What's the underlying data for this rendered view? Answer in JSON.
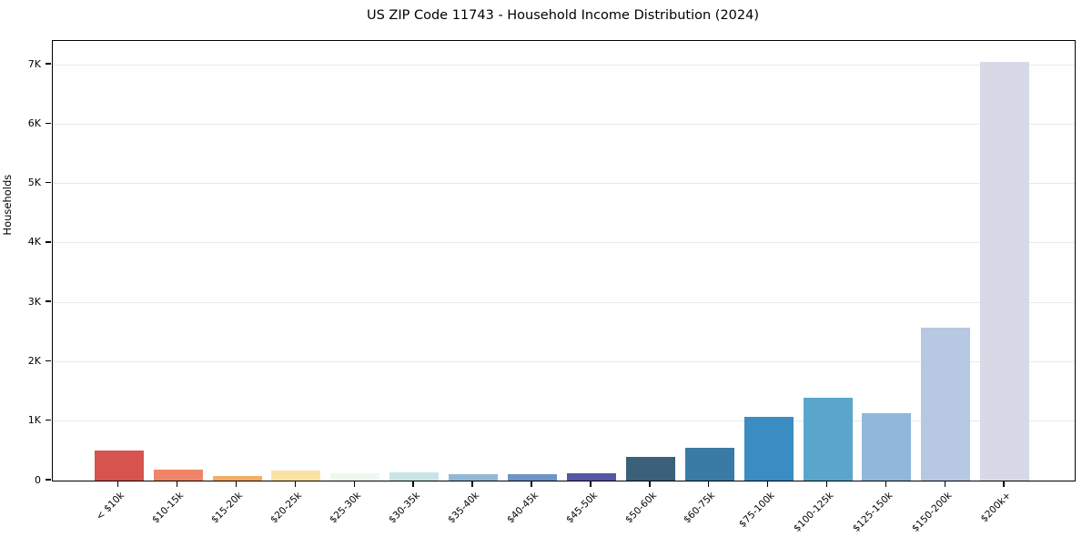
{
  "chart_data": {
    "type": "bar",
    "title": "US ZIP Code 11743 - Household Income Distribution (2024)",
    "xlabel": "",
    "ylabel": "Households",
    "categories": [
      "< $10k",
      "$10-15k",
      "$15-20k",
      "$20-25k",
      "$25-30k",
      "$30-35k",
      "$35-40k",
      "$40-45k",
      "$45-50k",
      "$50-60k",
      "$60-75k",
      "$75-100k",
      "$100-125k",
      "$125-150k",
      "$150-200k",
      "$200k+"
    ],
    "values": [
      500,
      180,
      80,
      165,
      120,
      140,
      115,
      100,
      125,
      400,
      550,
      1070,
      1390,
      1130,
      2580,
      7050
    ],
    "bar_colors": [
      "#d6534e",
      "#ef8566",
      "#f6ad62",
      "#fae3a2",
      "#eff8f0",
      "#c8e4e4",
      "#90b8d6",
      "#6e93c6",
      "#5655a6",
      "#3a607a",
      "#3a7ba6",
      "#3a8cc2",
      "#5aa5cb",
      "#8fb8da",
      "#b6c8e2",
      "#d7d9e6"
    ],
    "y_tick_labels": [
      "0",
      "1K",
      "2K",
      "3K",
      "4K",
      "5K",
      "6K",
      "7K"
    ],
    "y_tick_values": [
      0,
      1000,
      2000,
      3000,
      4000,
      5000,
      6000,
      7000
    ],
    "ylim": [
      0,
      7400
    ],
    "grid": "horizontal",
    "grid_color": "#e9e9eb",
    "legend": "none",
    "background_color": "#ffffff",
    "spine_color": "#000000"
  }
}
